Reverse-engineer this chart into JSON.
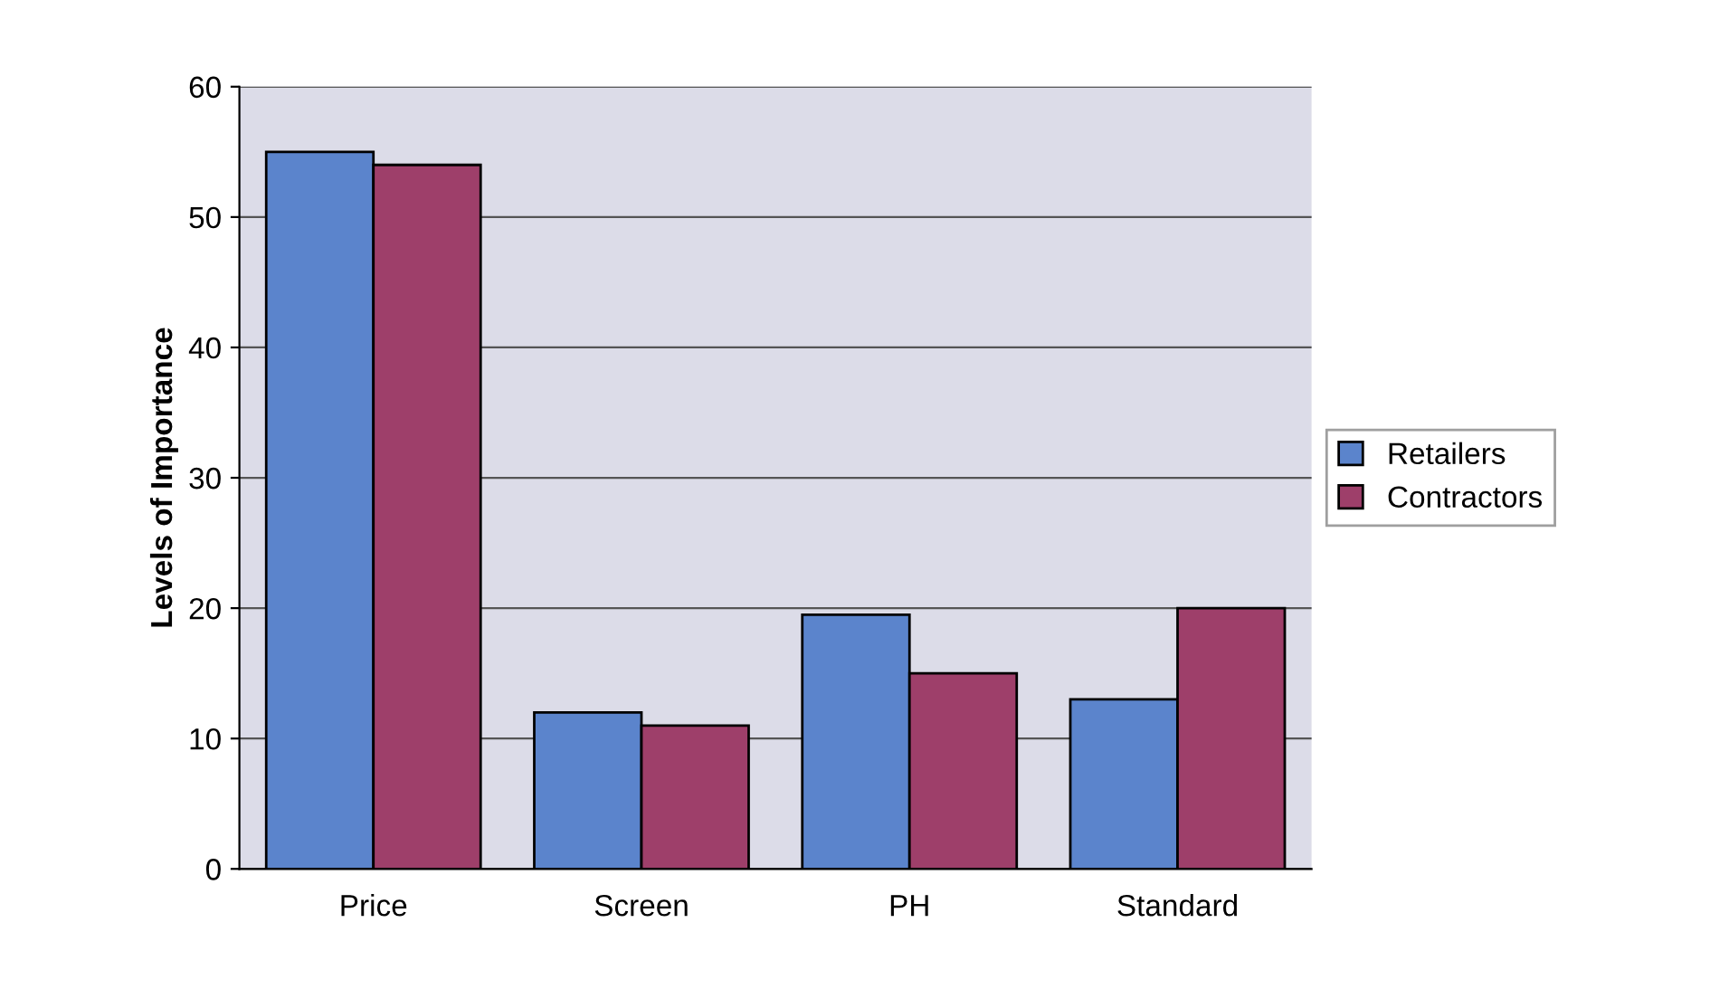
{
  "chart_data": {
    "type": "bar",
    "ylabel": "Levels of Importance",
    "categories": [
      "Price",
      "Screen",
      "PH",
      "Standard"
    ],
    "series": [
      {
        "name": "Retailers",
        "color": "#5b84cc",
        "values": [
          55,
          12,
          19.5,
          13
        ]
      },
      {
        "name": "Contractors",
        "color": "#9e3f6a",
        "values": [
          54,
          11,
          15,
          20
        ]
      }
    ],
    "ylim": [
      0,
      60
    ],
    "yticks": [
      0,
      10,
      20,
      30,
      40,
      50,
      60
    ],
    "grid": "y",
    "legend": "right"
  }
}
